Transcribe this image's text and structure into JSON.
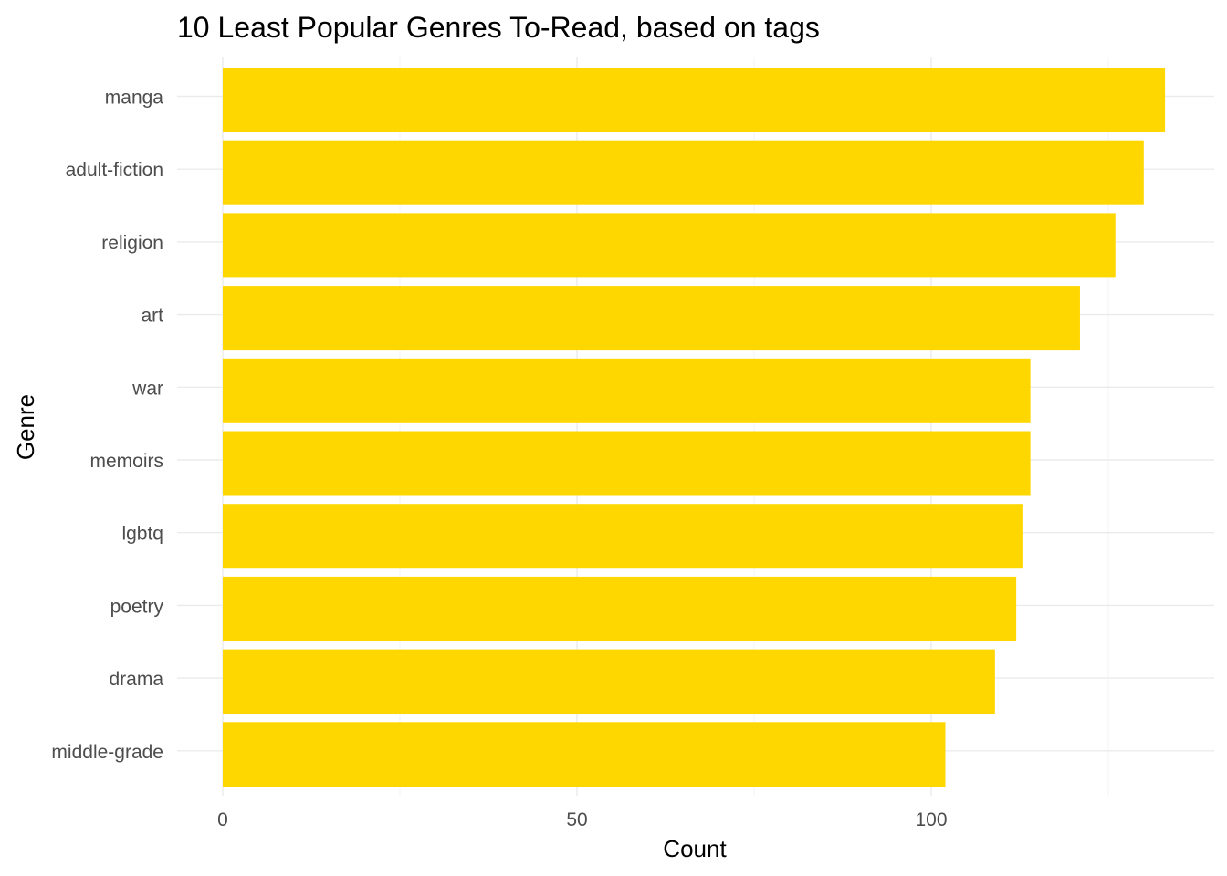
{
  "chart_data": {
    "type": "bar",
    "orientation": "horizontal",
    "title": "10 Least Popular Genres To-Read, based on tags",
    "xlabel": "Count",
    "ylabel": "Genre",
    "categories": [
      "manga",
      "adult-fiction",
      "religion",
      "art",
      "war",
      "memoirs",
      "lgbtq",
      "poetry",
      "drama",
      "middle-grade"
    ],
    "values": [
      133,
      130,
      126,
      121,
      114,
      114,
      113,
      112,
      109,
      102
    ],
    "x_ticks": [
      0,
      50,
      100
    ],
    "x_tick_labels": [
      "0",
      "50",
      "100"
    ],
    "xlim": [
      0,
      140
    ],
    "grid": true,
    "legend": "none",
    "bar_color": "#FFD700"
  }
}
